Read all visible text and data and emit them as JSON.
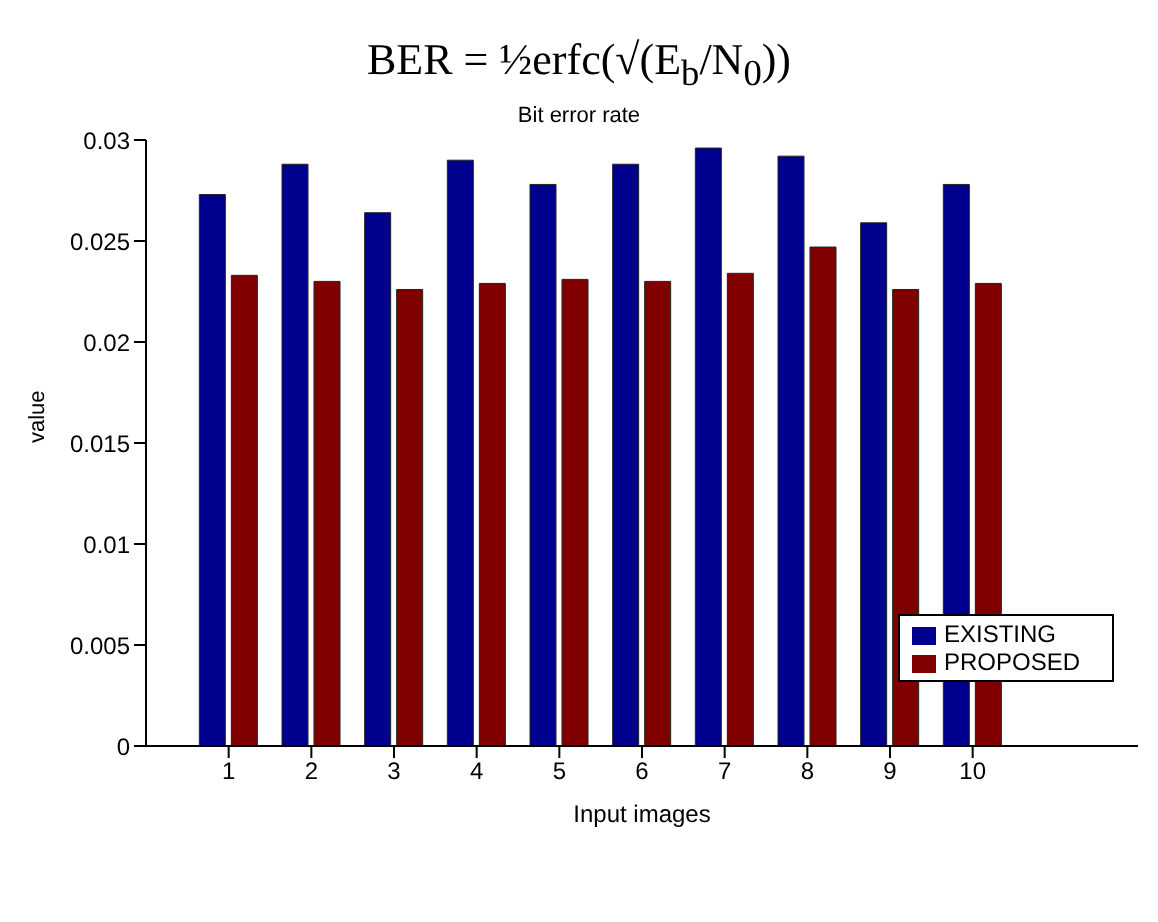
{
  "chart_data": {
    "type": "bar",
    "title": "BER = ½erfc(√(E$_{b}$/N$_{0}$))",
    "subtitle": "Bit error rate",
    "xlabel": "Input images",
    "ylabel": "value",
    "x": [
      1,
      2,
      3,
      4,
      5,
      6,
      7,
      8,
      9,
      10
    ],
    "xlim": [
      0,
      12
    ],
    "xticks": [
      1,
      2,
      3,
      4,
      5,
      6,
      7,
      8,
      9,
      10
    ],
    "ylim": [
      0,
      0.03
    ],
    "yticks": [
      0,
      0.005,
      0.01,
      0.015,
      0.02,
      0.025,
      0.03
    ],
    "series": [
      {
        "name": "EXISTING",
        "color": "#00008f",
        "values": [
          0.0273,
          0.0288,
          0.0264,
          0.029,
          0.0278,
          0.0288,
          0.0296,
          0.0292,
          0.0259,
          0.0278
        ]
      },
      {
        "name": "PROPOSED",
        "color": "#800000",
        "values": [
          0.0233,
          0.023,
          0.0226,
          0.0229,
          0.0231,
          0.023,
          0.0234,
          0.0247,
          0.0226,
          0.0229
        ]
      }
    ],
    "grid": false,
    "legend": "bottom right"
  }
}
